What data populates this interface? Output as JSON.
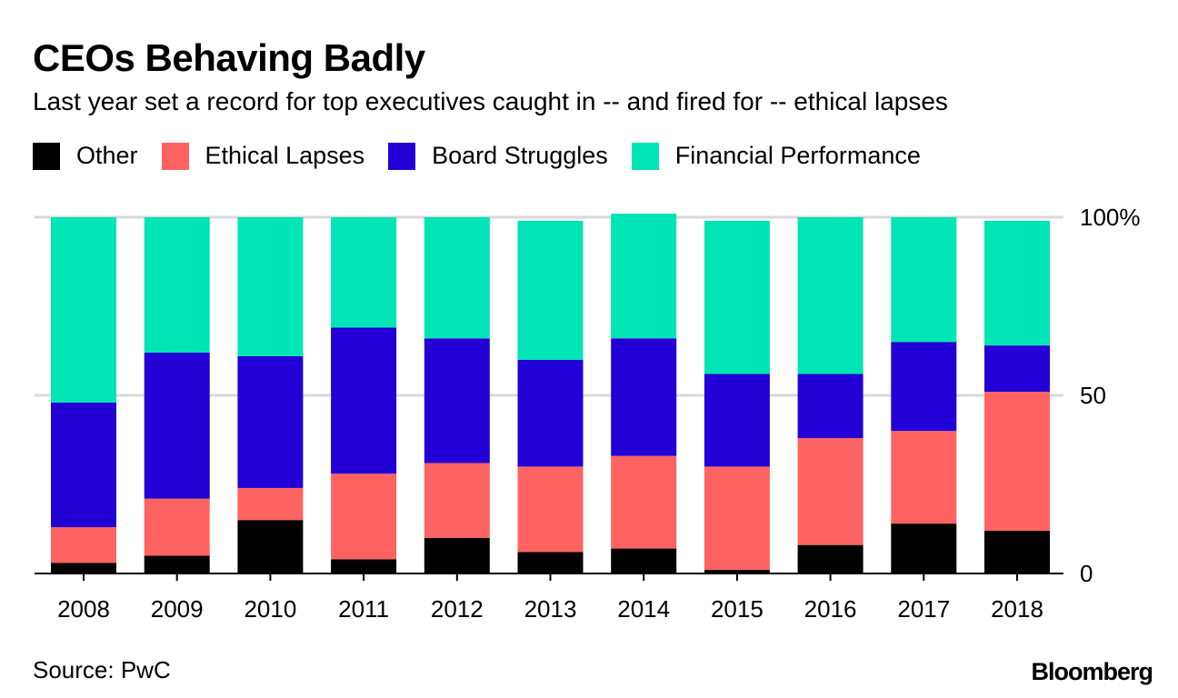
{
  "chart_data": {
    "type": "bar",
    "stacked": true,
    "title": "CEOs Behaving Badly",
    "subtitle": "Last year set a record for top executives caught in -- and fired for -- ethical lapses",
    "categories": [
      "2008",
      "2009",
      "2010",
      "2011",
      "2012",
      "2013",
      "2014",
      "2015",
      "2016",
      "2017",
      "2018"
    ],
    "series": [
      {
        "name": "Other",
        "color": "#000000",
        "values": [
          3,
          5,
          15,
          4,
          10,
          6,
          7,
          1,
          8,
          14,
          12
        ]
      },
      {
        "name": "Ethical Lapses",
        "color": "#ff6361",
        "values": [
          10,
          16,
          9,
          24,
          21,
          24,
          26,
          29,
          30,
          26,
          39
        ]
      },
      {
        "name": "Board Struggles",
        "color": "#2200d6",
        "values": [
          35,
          41,
          37,
          41,
          35,
          30,
          33,
          26,
          18,
          25,
          13
        ]
      },
      {
        "name": "Financial Performance",
        "color": "#00e5b5",
        "values": [
          52,
          38,
          39,
          31,
          34,
          39,
          35,
          43,
          44,
          35,
          35
        ]
      }
    ],
    "yticks": [
      {
        "value": 0,
        "label": "0"
      },
      {
        "value": 50,
        "label": "50"
      },
      {
        "value": 100,
        "label": "100%"
      }
    ],
    "ylim": [
      0,
      100
    ],
    "xlabel": "",
    "ylabel": "",
    "grid": true,
    "legend": "top-left",
    "source": "Source: PwC",
    "logo": "Bloomberg"
  }
}
